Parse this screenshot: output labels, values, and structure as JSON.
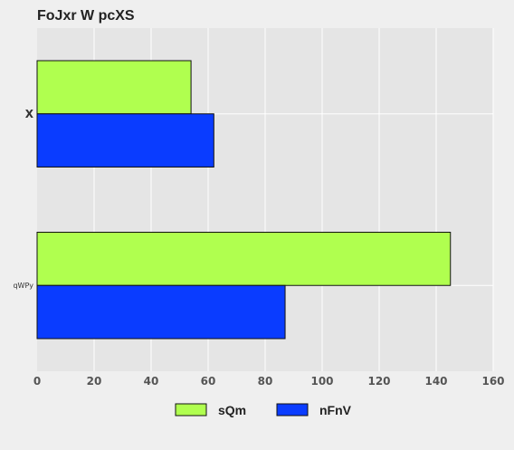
{
  "chart_data": {
    "type": "bar",
    "orientation": "horizontal",
    "title": "FoJxr W pcXS",
    "xlabel": "",
    "ylabel": "",
    "categories": [
      "X",
      "qWPy"
    ],
    "series": [
      {
        "name": "sQm",
        "color": "#b0ff4f",
        "values": [
          54,
          145
        ]
      },
      {
        "name": "nFnV",
        "color": "#0a3cff",
        "values": [
          62,
          87
        ]
      }
    ],
    "xlim": [
      0,
      160
    ],
    "x_ticks": [
      0,
      20,
      40,
      60,
      80,
      100,
      120,
      140,
      160
    ],
    "grid": true,
    "legend_position": "bottom"
  }
}
